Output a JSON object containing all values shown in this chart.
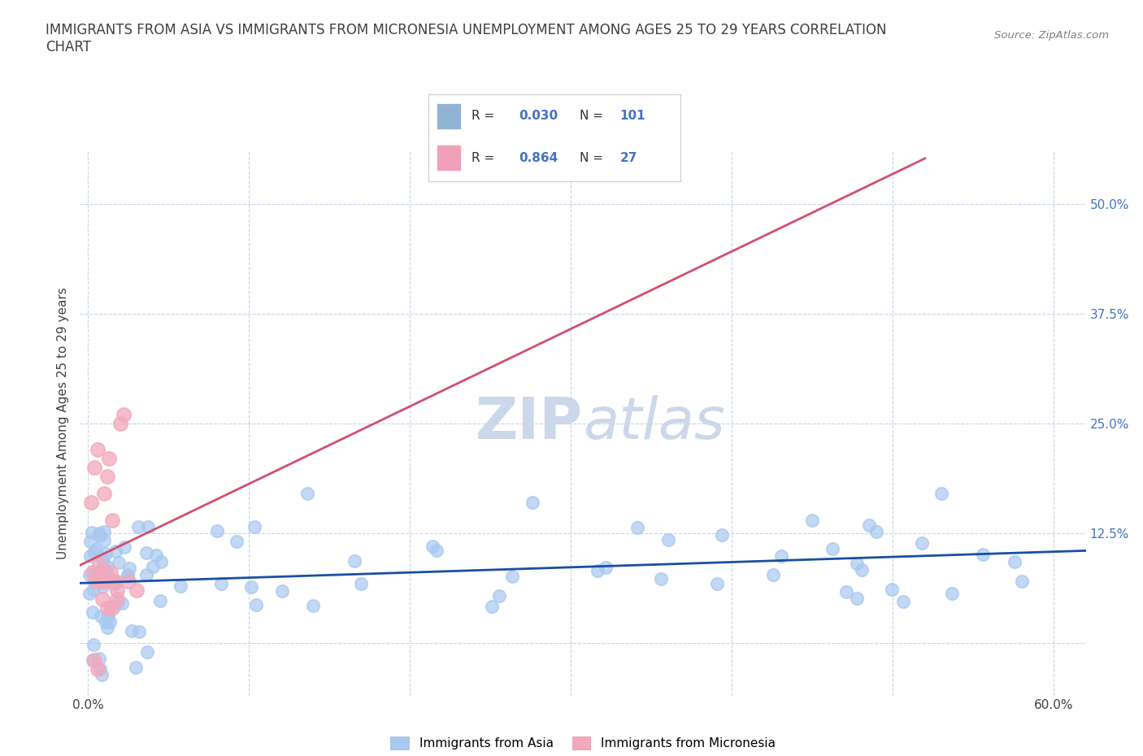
{
  "title": "IMMIGRANTS FROM ASIA VS IMMIGRANTS FROM MICRONESIA UNEMPLOYMENT AMONG AGES 25 TO 29 YEARS CORRELATION\nCHART",
  "source_text": "Source: ZipAtlas.com",
  "ylabel": "Unemployment Among Ages 25 to 29 years",
  "xlim": [
    -0.005,
    0.62
  ],
  "ylim": [
    -0.06,
    0.56
  ],
  "yticks": [
    0.0,
    0.125,
    0.25,
    0.375,
    0.5
  ],
  "ytick_labels": [
    "",
    "12.5%",
    "25.0%",
    "37.5%",
    "50.0%"
  ],
  "xticks": [
    0.0,
    0.1,
    0.2,
    0.3,
    0.4,
    0.5,
    0.6
  ],
  "xtick_labels": [
    "0.0%",
    "",
    "",
    "",
    "",
    "",
    "60.0%"
  ],
  "legend_asia_color": "#92b4d4",
  "legend_micro_color": "#f0a0b8",
  "asia_line_color": "#1a4fa0",
  "micronesia_line_color": "#d05070",
  "asia_scatter_color": "#a8c8f0",
  "micronesia_scatter_color": "#f4a8bc",
  "background_color": "#ffffff",
  "grid_color": "#c8d4e8",
  "title_color": "#404040",
  "watermark_color": "#ccd8ea",
  "asia_R": "0.030",
  "asia_N": "101",
  "micro_R": "0.864",
  "micro_N": "27",
  "label_asia": "Immigrants from Asia",
  "label_micro": "Immigrants from Micronesia",
  "asia_x": [
    0.001,
    0.002,
    0.003,
    0.004,
    0.005,
    0.006,
    0.007,
    0.008,
    0.009,
    0.01,
    0.011,
    0.012,
    0.013,
    0.014,
    0.015,
    0.016,
    0.017,
    0.018,
    0.019,
    0.02,
    0.021,
    0.022,
    0.023,
    0.024,
    0.025,
    0.026,
    0.027,
    0.028,
    0.03,
    0.032,
    0.034,
    0.036,
    0.038,
    0.04,
    0.042,
    0.044,
    0.046,
    0.048,
    0.05,
    0.055,
    0.06,
    0.065,
    0.07,
    0.075,
    0.08,
    0.085,
    0.09,
    0.095,
    0.1,
    0.11,
    0.12,
    0.13,
    0.14,
    0.15,
    0.16,
    0.17,
    0.18,
    0.19,
    0.2,
    0.21,
    0.22,
    0.23,
    0.24,
    0.25,
    0.26,
    0.27,
    0.28,
    0.29,
    0.3,
    0.32,
    0.34,
    0.35,
    0.36,
    0.37,
    0.38,
    0.39,
    0.4,
    0.41,
    0.42,
    0.43,
    0.44,
    0.45,
    0.46,
    0.47,
    0.48,
    0.49,
    0.5,
    0.51,
    0.52,
    0.53,
    0.54,
    0.55,
    0.56,
    0.57,
    0.58,
    0.003,
    0.005,
    0.008,
    0.012,
    0.015,
    0.018
  ],
  "asia_y": [
    0.09,
    0.08,
    0.1,
    0.09,
    0.08,
    0.09,
    0.1,
    0.09,
    0.08,
    0.09,
    0.08,
    0.09,
    0.1,
    0.08,
    0.09,
    0.08,
    0.09,
    0.1,
    0.09,
    0.08,
    0.09,
    0.08,
    0.09,
    0.1,
    0.09,
    0.08,
    0.09,
    0.08,
    0.09,
    0.08,
    0.09,
    0.1,
    0.09,
    0.08,
    0.09,
    0.08,
    0.09,
    0.1,
    0.09,
    0.08,
    0.09,
    0.08,
    0.09,
    0.08,
    0.09,
    0.08,
    0.09,
    0.1,
    0.08,
    0.09,
    0.1,
    0.09,
    0.08,
    0.09,
    0.1,
    0.09,
    0.08,
    0.09,
    0.1,
    0.09,
    0.08,
    0.09,
    0.1,
    0.09,
    0.08,
    0.09,
    0.1,
    0.09,
    0.08,
    0.09,
    0.08,
    0.09,
    0.1,
    0.09,
    0.08,
    0.09,
    0.1,
    0.09,
    0.08,
    0.09,
    0.16,
    0.09,
    0.1,
    0.09,
    0.08,
    0.09,
    0.1,
    0.09,
    0.08,
    0.09,
    0.08,
    0.09,
    0.1,
    0.09,
    0.08,
    0.04,
    0.05,
    0.04,
    0.05,
    0.04,
    0.04
  ],
  "micro_x": [
    0.002,
    0.003,
    0.004,
    0.005,
    0.006,
    0.007,
    0.008,
    0.009,
    0.01,
    0.011,
    0.012,
    0.013,
    0.014,
    0.015,
    0.016,
    0.017,
    0.018,
    0.019,
    0.02,
    0.022,
    0.025,
    0.028,
    0.03,
    0.032,
    0.05,
    0.065,
    0.09
  ],
  "micro_y": [
    0.16,
    0.21,
    0.2,
    0.19,
    0.09,
    0.08,
    0.07,
    0.09,
    0.08,
    0.19,
    0.22,
    0.2,
    0.17,
    0.14,
    0.08,
    0.07,
    0.06,
    0.08,
    0.07,
    0.25,
    0.26,
    0.07,
    0.08,
    0.04,
    0.05,
    0.04,
    0.04
  ]
}
